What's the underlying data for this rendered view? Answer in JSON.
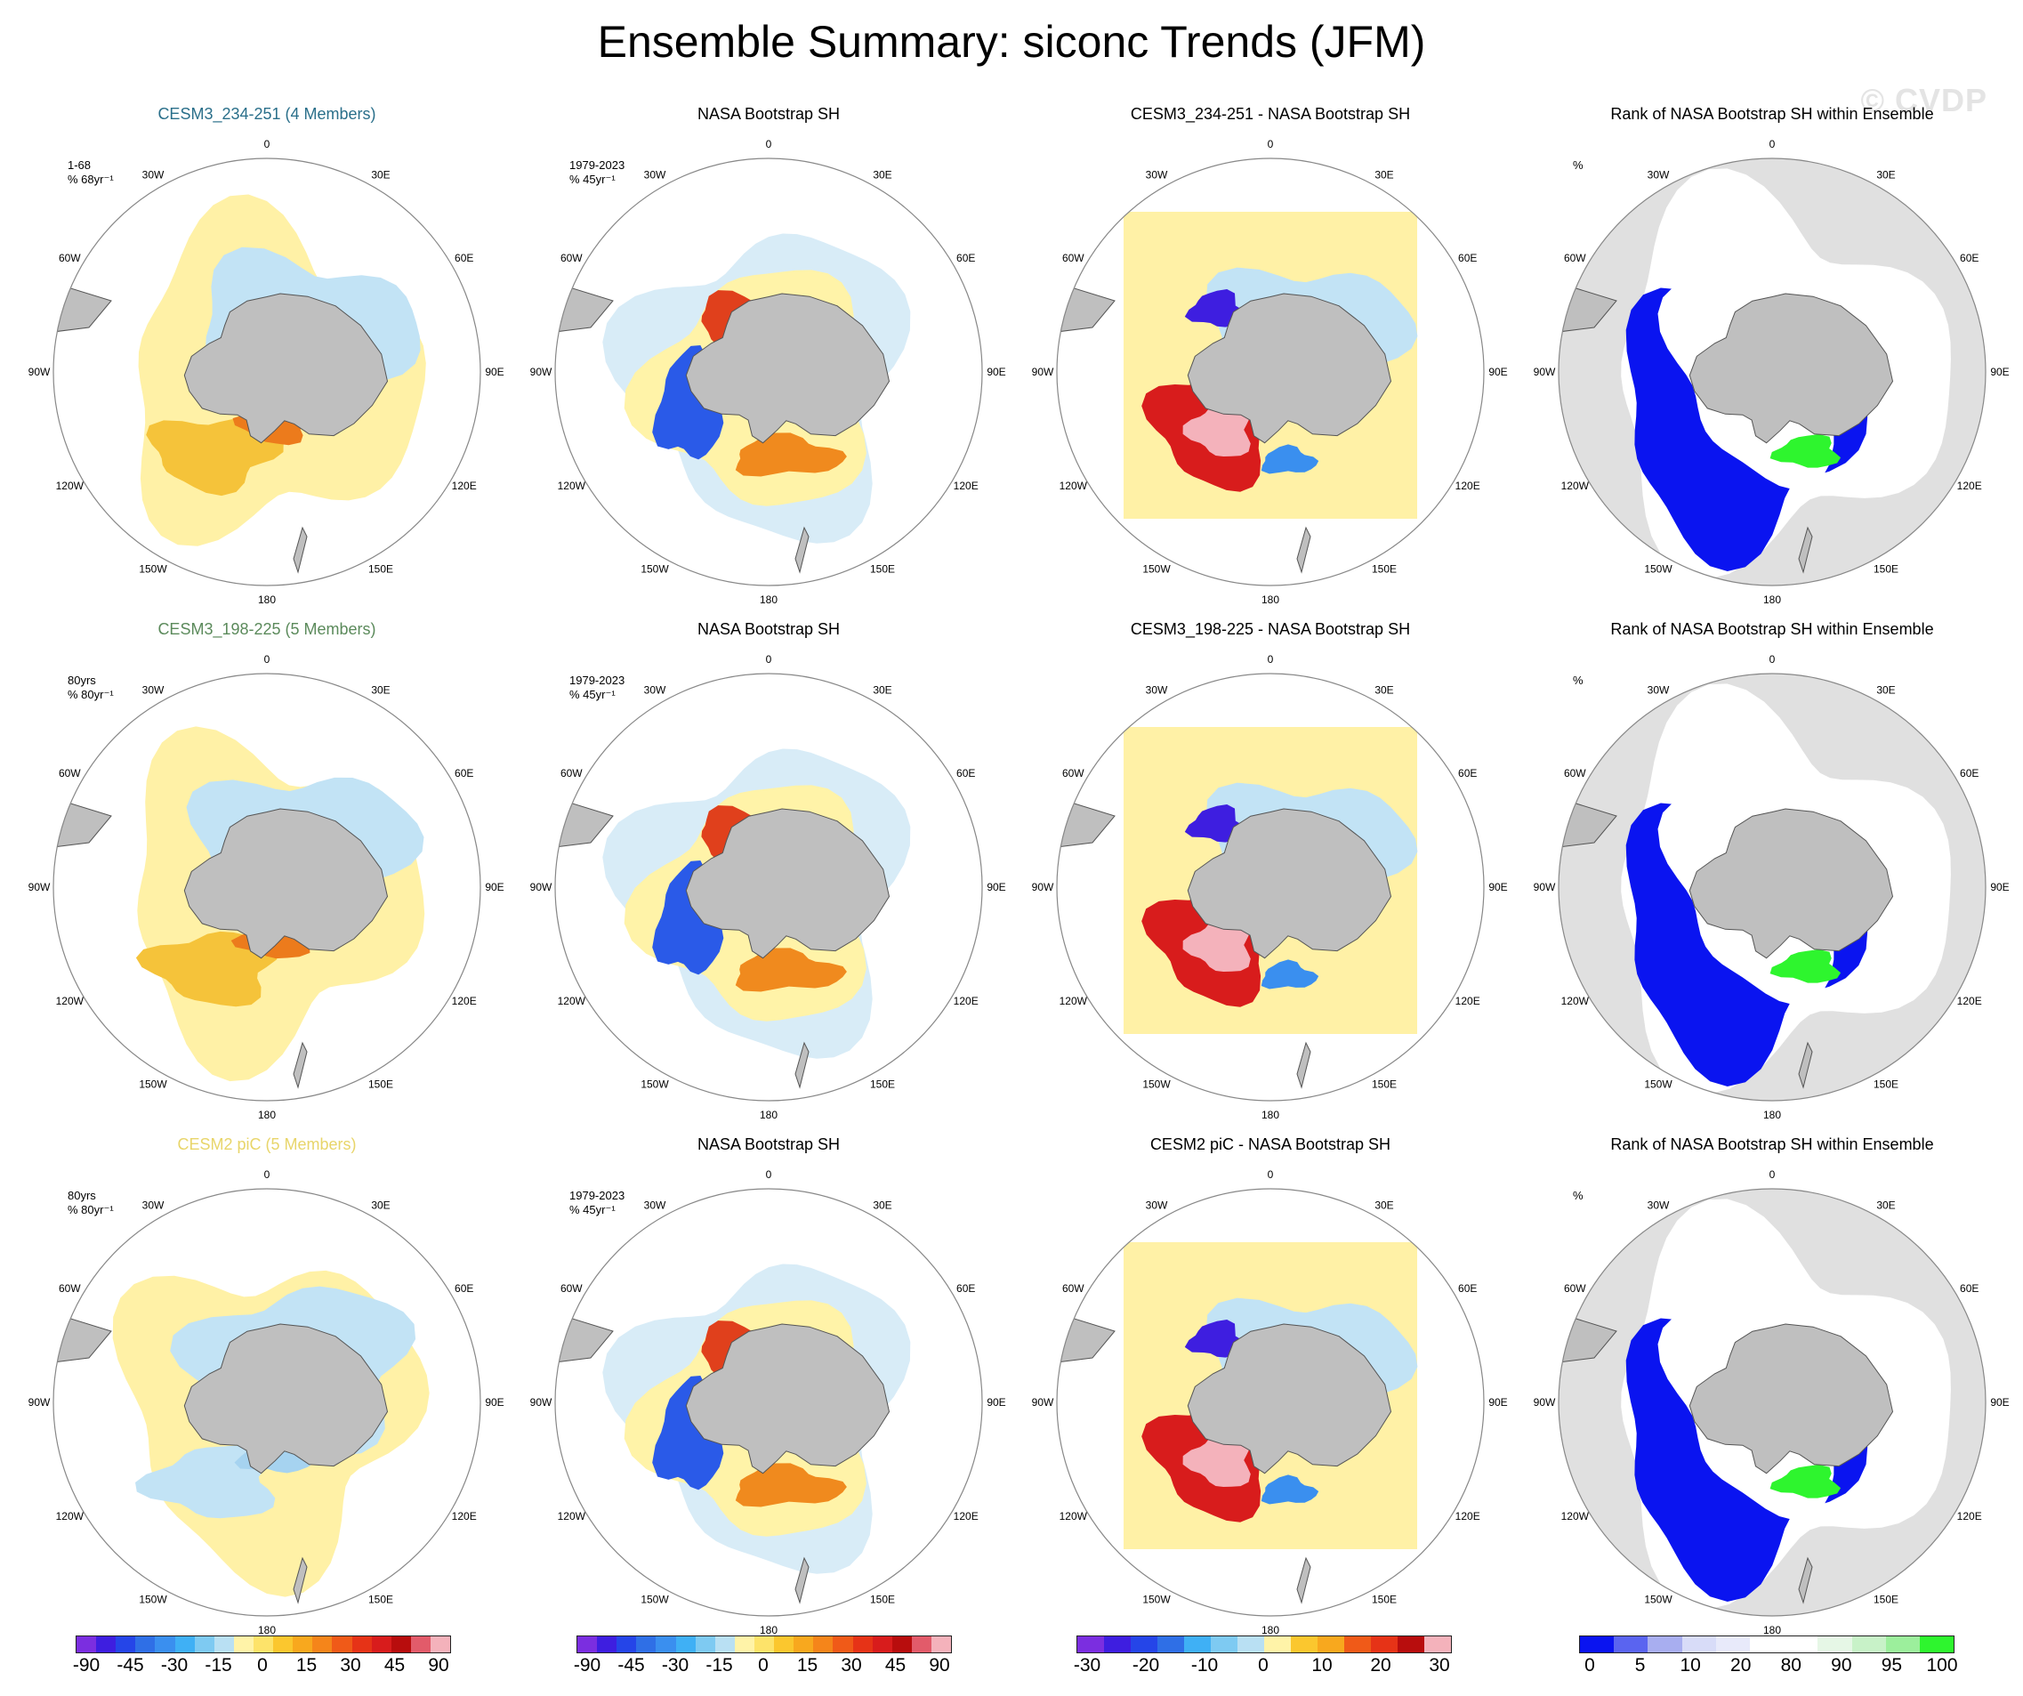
{
  "title": "Ensemble Summary: siconc Trends (JFM)",
  "watermark": "© CVDP",
  "lon_labels": [
    "0",
    "30E",
    "60E",
    "90E",
    "120E",
    "150E",
    "180",
    "150W",
    "120W",
    "90W",
    "60W",
    "30W"
  ],
  "colors": {
    "land": "#bfbfbf",
    "coast": "#555555",
    "frame": "#888888",
    "title_model1": "#2a6f8a",
    "title_model2": "#5b8a5b",
    "title_model3": "#e8d56a",
    "title_default": "#000000"
  },
  "panels": [
    {
      "id": "r1c1",
      "title": "CESM3_234-251 (4 Members)",
      "title_color": "#2a6f8a",
      "annot": "1-68\n% 68yr⁻¹",
      "kind": "model",
      "variant": 1
    },
    {
      "id": "r1c2",
      "title": "NASA Bootstrap SH",
      "title_color": "#000000",
      "annot": "1979-2023\n% 45yr⁻¹",
      "kind": "obs",
      "variant": 1
    },
    {
      "id": "r1c3",
      "title": "CESM3_234-251 - NASA Bootstrap SH",
      "title_color": "#000000",
      "annot": "",
      "kind": "diff",
      "variant": 1
    },
    {
      "id": "r1c4",
      "title": "Rank of NASA Bootstrap SH within Ensemble",
      "title_color": "#000000",
      "annot": "%",
      "kind": "rank",
      "variant": 1
    },
    {
      "id": "r2c1",
      "title": "CESM3_198-225 (5 Members)",
      "title_color": "#5b8a5b",
      "annot": "80yrs\n% 80yr⁻¹",
      "kind": "model",
      "variant": 2
    },
    {
      "id": "r2c2",
      "title": "NASA Bootstrap SH",
      "title_color": "#000000",
      "annot": "1979-2023\n% 45yr⁻¹",
      "kind": "obs",
      "variant": 2
    },
    {
      "id": "r2c3",
      "title": "CESM3_198-225 - NASA Bootstrap SH",
      "title_color": "#000000",
      "annot": "",
      "kind": "diff",
      "variant": 2
    },
    {
      "id": "r2c4",
      "title": "Rank of NASA Bootstrap SH within Ensemble",
      "title_color": "#000000",
      "annot": "%",
      "kind": "rank",
      "variant": 2
    },
    {
      "id": "r3c1",
      "title": "CESM2 piC (5 Members)",
      "title_color": "#e8d56a",
      "annot": "80yrs\n% 80yr⁻¹",
      "kind": "model",
      "variant": 3
    },
    {
      "id": "r3c2",
      "title": "NASA Bootstrap SH",
      "title_color": "#000000",
      "annot": "1979-2023\n% 45yr⁻¹",
      "kind": "obs",
      "variant": 3
    },
    {
      "id": "r3c3",
      "title": "CESM2 piC - NASA Bootstrap SH",
      "title_color": "#000000",
      "annot": "",
      "kind": "diff",
      "variant": 3
    },
    {
      "id": "r3c4",
      "title": "Rank of NASA Bootstrap SH within Ensemble",
      "title_color": "#000000",
      "annot": "%",
      "kind": "rank",
      "variant": 3
    }
  ],
  "colorbars": [
    {
      "id": "trend-cb-1",
      "labels": [
        "-90",
        "-45",
        "-30",
        "-15",
        "0",
        "15",
        "30",
        "45",
        "90"
      ],
      "colors": [
        "#7b2ee0",
        "#3e1ee0",
        "#2545e8",
        "#2f6fe6",
        "#3a8fef",
        "#3fb0f5",
        "#7ecaf2",
        "#b9e0f3",
        "#fff3a8",
        "#fde36a",
        "#fbc72e",
        "#f8a81e",
        "#f5851a",
        "#f05a18",
        "#e63317",
        "#d81c1c",
        "#b80d0d",
        "#e25b6a",
        "#f4b2bb"
      ]
    },
    {
      "id": "trend-cb-2",
      "labels": [
        "-90",
        "-45",
        "-30",
        "-15",
        "0",
        "15",
        "30",
        "45",
        "90"
      ],
      "colors": [
        "#7b2ee0",
        "#3e1ee0",
        "#2545e8",
        "#2f6fe6",
        "#3a8fef",
        "#3fb0f5",
        "#7ecaf2",
        "#b9e0f3",
        "#fff3a8",
        "#fde36a",
        "#fbc72e",
        "#f8a81e",
        "#f5851a",
        "#f05a18",
        "#e63317",
        "#d81c1c",
        "#b80d0d",
        "#e25b6a",
        "#f4b2bb"
      ]
    },
    {
      "id": "diff-cb",
      "labels": [
        "-30",
        "-20",
        "-10",
        "0",
        "10",
        "20",
        "30"
      ],
      "colors": [
        "#7b2ee0",
        "#3e1ee0",
        "#2545e8",
        "#2f6fe6",
        "#3fb0f5",
        "#7ecaf2",
        "#b9e0f3",
        "#fff3a8",
        "#fbc72e",
        "#f8a81e",
        "#f05a18",
        "#e63317",
        "#b80d0d",
        "#f4b2bb"
      ]
    },
    {
      "id": "rank-cb",
      "labels": [
        "0",
        "5",
        "10",
        "20",
        "80",
        "90",
        "95",
        "100"
      ],
      "colors": [
        "#0a14f0",
        "#5a64f0",
        "#a8aef0",
        "#d8dcf8",
        "#e8eafa",
        "#ffffff",
        "#ffffff",
        "#e6f7e6",
        "#c8f2c8",
        "#9cef9c",
        "#2ef52e"
      ]
    }
  ]
}
